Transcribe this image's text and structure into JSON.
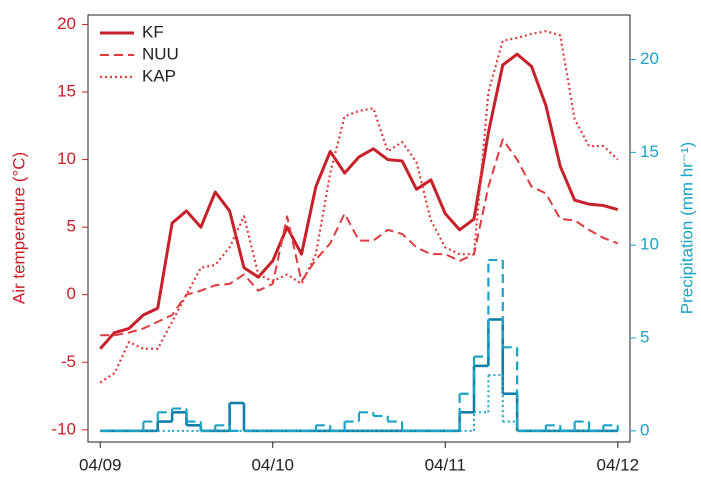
{
  "chart_data": {
    "type": "line",
    "x": [
      0,
      2,
      4,
      6,
      8,
      10,
      12,
      14,
      16,
      18,
      20,
      22,
      24,
      26,
      28,
      30,
      32,
      34,
      36,
      38,
      40,
      42,
      44,
      46,
      48,
      50,
      52,
      54,
      56,
      58,
      60,
      62,
      64,
      66,
      68,
      70,
      72
    ],
    "xlim": [
      -1.7,
      73.7
    ],
    "xticks": [
      {
        "value": 0,
        "label": "04/09"
      },
      {
        "value": 24,
        "label": "04/10"
      },
      {
        "value": 48,
        "label": "04/11"
      },
      {
        "value": 72,
        "label": "04/12"
      }
    ],
    "ylabel": "Air temperature (°C)",
    "ylim": [
      -10.9,
      20.7
    ],
    "yticks": [
      -10,
      -5,
      0,
      5,
      10,
      15,
      20
    ],
    "ycolor": "#c8202a",
    "y2label": "Precipitation (mm hr⁻¹)",
    "y2lim": [
      -0.6,
      22.4
    ],
    "y2ticks": [
      0,
      5,
      10,
      15,
      20
    ],
    "y2color": "#1ba3c6",
    "legend": "upper left",
    "series": [
      {
        "name": "KF",
        "color": "#c8202a",
        "dash": "solid",
        "width": 3,
        "values": [
          -4,
          -2.8,
          -2.5,
          -1.5,
          -1,
          5.3,
          6.2,
          5,
          7.6,
          6.2,
          2,
          1.3,
          2.5,
          5,
          3,
          8,
          10.6,
          9,
          10.2,
          10.8,
          10,
          9.9,
          7.8,
          8.5,
          6,
          4.8,
          5.6,
          12,
          17,
          17.8,
          16.9,
          14,
          9.5,
          7,
          6.7,
          6.6,
          6.3
        ]
      },
      {
        "name": "NUU",
        "color": "#e03a3e",
        "dash": "dashed",
        "width": 2,
        "values": [
          -3,
          -3,
          -2.8,
          -2.5,
          -2,
          -1.5,
          0,
          0.3,
          0.7,
          0.8,
          1.5,
          0.3,
          0.8,
          5.8,
          1,
          2.6,
          3.8,
          6,
          4,
          4,
          4.8,
          4.5,
          3.5,
          3,
          3,
          2.5,
          3,
          8,
          11.5,
          10,
          8,
          7.5,
          5.6,
          5.5,
          4.8,
          4.2,
          3.8
        ]
      },
      {
        "name": "KAP",
        "color": "#e03a3e",
        "dash": "dotted",
        "width": 2.2,
        "values": [
          -6.5,
          -5.8,
          -3.5,
          -4,
          -4,
          -2,
          0,
          2,
          2.2,
          3.5,
          5.8,
          1.5,
          1,
          1.5,
          0.8,
          3,
          9,
          13.2,
          13.6,
          13.8,
          10.6,
          11.3,
          9.8,
          5.5,
          3.5,
          3,
          3,
          15,
          18.8,
          19,
          19.3,
          19.5,
          19.2,
          13,
          11,
          11,
          10
        ]
      },
      {
        "color": "#0f7fa8",
        "dash": "solid",
        "width": 2.6,
        "axis": "y2",
        "step": true,
        "values": [
          0,
          0,
          0,
          0,
          0.5,
          1,
          0.3,
          0,
          0,
          1.5,
          0,
          0,
          0,
          0,
          0,
          0,
          0,
          0,
          0,
          0,
          0,
          0,
          0,
          0,
          0,
          1,
          3.5,
          6,
          2,
          0,
          0,
          0,
          0,
          0,
          0,
          0,
          0
        ]
      },
      {
        "color": "#1ba3c6",
        "dash": "dashed",
        "width": 2.2,
        "axis": "y2",
        "step": true,
        "values": [
          0,
          0,
          0,
          0.5,
          1,
          1.2,
          0.5,
          0,
          0.3,
          0,
          0,
          0,
          0,
          0,
          0,
          0.3,
          0,
          0.5,
          1,
          0.8,
          0.5,
          0,
          0,
          0,
          0,
          2,
          4,
          9.2,
          4.5,
          0,
          0,
          0.3,
          0,
          0.5,
          0,
          0.3,
          0
        ]
      },
      {
        "color": "#1ba3c6",
        "dash": "dotted",
        "width": 2,
        "axis": "y2",
        "step": true,
        "values": [
          0,
          0,
          0,
          0,
          0,
          0,
          0,
          0,
          0,
          0,
          0,
          0,
          0,
          0,
          0,
          0,
          0,
          0,
          0,
          0,
          0,
          0,
          0,
          0,
          0,
          0,
          1,
          3,
          0.5,
          0,
          0,
          0,
          0,
          0,
          0,
          0,
          0
        ]
      }
    ]
  }
}
